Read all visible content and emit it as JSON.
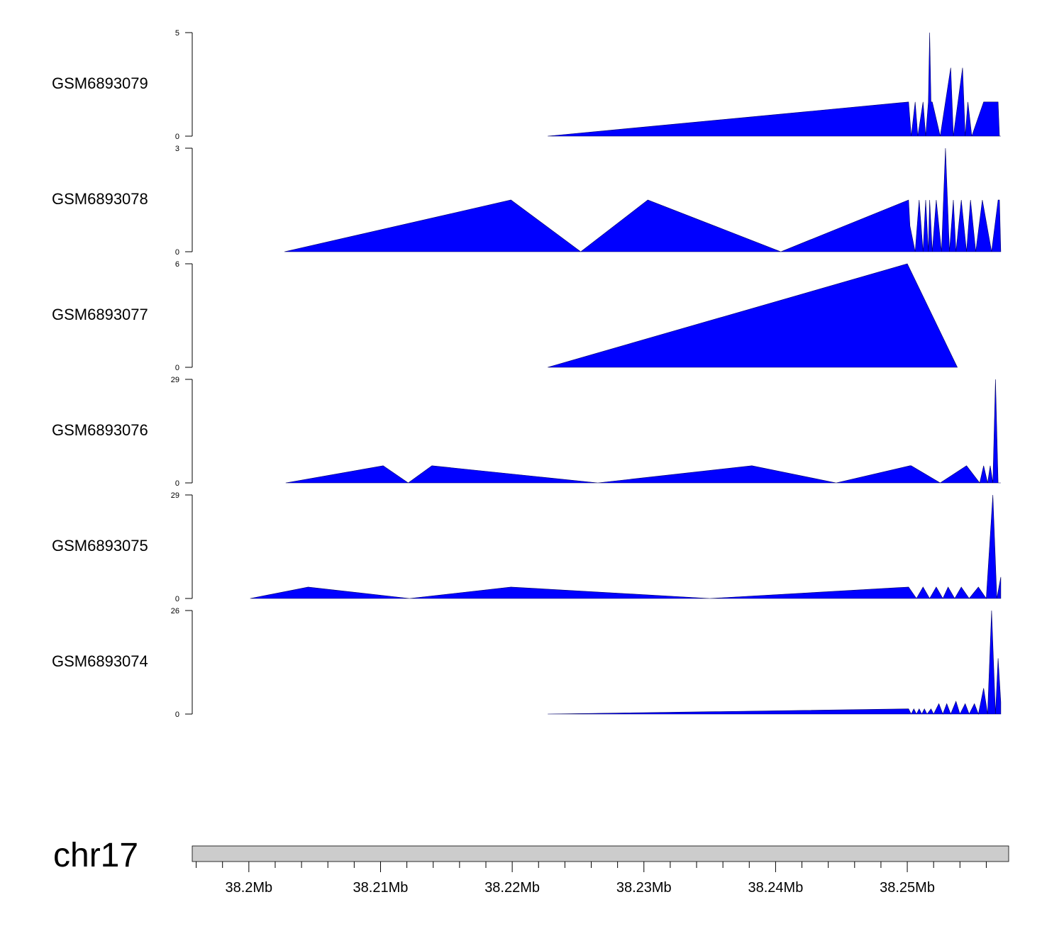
{
  "chart_data": {
    "type": "area",
    "title": "",
    "chromosome": "chr17",
    "xlim_mb": [
      38.1957,
      38.2577
    ],
    "x_ticks_major": [
      38.2,
      38.21,
      38.22,
      38.23,
      38.24,
      38.25
    ],
    "x_tick_labels": [
      "38.2Mb",
      "38.21Mb",
      "38.22Mb",
      "38.23Mb",
      "38.24Mb",
      "38.25Mb"
    ],
    "x_ticks_minor_step_mb": 0.002,
    "fill_color": "#0000ff",
    "axis_color": "#000000",
    "ideogram_color": "#cccccc",
    "tracks": [
      {
        "name": "GSM6893079",
        "ylim": [
          0,
          5
        ],
        "y_tick_labels": [
          "0",
          "5"
        ],
        "x": [
          38.2227,
          38.2501,
          38.2503,
          38.2506,
          38.2508,
          38.2512,
          38.2514,
          38.2516,
          38.2517,
          38.2518,
          38.2519,
          38.2525,
          38.2533,
          38.2534,
          38.2535,
          38.2542,
          38.2543,
          38.2544,
          38.2546,
          38.2549,
          38.2558,
          38.2569,
          38.257,
          38.2571
        ],
        "y": [
          0,
          1.65,
          0,
          1.65,
          0,
          1.65,
          0,
          1.65,
          5.0,
          1.65,
          1.65,
          0,
          3.3,
          1.65,
          0,
          3.3,
          1.65,
          0,
          1.65,
          0,
          1.65,
          1.65,
          0,
          0
        ]
      },
      {
        "name": "GSM6893078",
        "ylim": [
          0,
          3
        ],
        "y_tick_labels": [
          "0",
          "3"
        ],
        "x": [
          38.2027,
          38.2199,
          38.2252,
          38.2303,
          38.2404,
          38.2501,
          38.2502,
          38.2506,
          38.2509,
          38.2512,
          38.2514,
          38.2516,
          38.2517,
          38.2519,
          38.2522,
          38.2526,
          38.2529,
          38.2532,
          38.2535,
          38.2537,
          38.2541,
          38.2545,
          38.2548,
          38.2552,
          38.2557,
          38.2564,
          38.2569,
          38.257,
          38.2571
        ],
        "y": [
          0,
          1.5,
          0,
          1.5,
          0,
          1.5,
          0.75,
          0,
          1.5,
          0,
          1.5,
          0,
          1.5,
          0,
          1.5,
          0,
          3.0,
          0,
          1.5,
          0,
          1.5,
          0,
          1.5,
          0,
          1.5,
          0,
          1.5,
          1.5,
          0
        ]
      },
      {
        "name": "GSM6893077",
        "ylim": [
          0,
          6
        ],
        "y_tick_labels": [
          "0",
          "6"
        ],
        "x": [
          38.2227,
          38.25,
          38.2538
        ],
        "y": [
          0,
          6.0,
          0
        ]
      },
      {
        "name": "GSM6893076",
        "ylim": [
          0,
          29
        ],
        "y_tick_labels": [
          "0",
          "29"
        ],
        "x": [
          38.2028,
          38.2102,
          38.2121,
          38.2139,
          38.2265,
          38.2382,
          38.2446,
          38.2502,
          38.2503,
          38.2525,
          38.2545,
          38.2555,
          38.2558,
          38.2561,
          38.2563,
          38.2565,
          38.2567,
          38.2569,
          38.2571
        ],
        "y": [
          0,
          4.8,
          0,
          4.8,
          0,
          4.8,
          0,
          4.8,
          4.8,
          0,
          4.8,
          0,
          4.8,
          0,
          4.8,
          0,
          29,
          0,
          0
        ]
      },
      {
        "name": "GSM6893075",
        "ylim": [
          0,
          29
        ],
        "y_tick_labels": [
          "0",
          "29"
        ],
        "x": [
          38.2001,
          38.2045,
          38.2122,
          38.2199,
          38.235,
          38.2501,
          38.2507,
          38.2512,
          38.2517,
          38.2522,
          38.2527,
          38.2531,
          38.2536,
          38.2541,
          38.2547,
          38.2554,
          38.256,
          38.2565,
          38.2568,
          38.2571
        ],
        "y": [
          0,
          3.2,
          0,
          3.2,
          0,
          3.2,
          0,
          3.2,
          0,
          3.2,
          0,
          3.2,
          0,
          3.2,
          0,
          3.2,
          0,
          29,
          0,
          6
        ]
      },
      {
        "name": "GSM6893074",
        "ylim": [
          0,
          26
        ],
        "y_tick_labels": [
          "0",
          "26"
        ],
        "x": [
          38.2227,
          38.2501,
          38.2503,
          38.2505,
          38.2507,
          38.2509,
          38.2511,
          38.2513,
          38.2515,
          38.2518,
          38.252,
          38.2524,
          38.2527,
          38.253,
          38.2533,
          38.2537,
          38.254,
          38.2544,
          38.2547,
          38.2551,
          38.2554,
          38.2558,
          38.2561,
          38.2564,
          38.2567,
          38.2569,
          38.2571
        ],
        "y": [
          0,
          1.3,
          0,
          1.3,
          0,
          1.3,
          0,
          1.3,
          0,
          1.3,
          0,
          2.6,
          0,
          2.6,
          0,
          3.2,
          0,
          2.6,
          0,
          2.6,
          0,
          6.5,
          0,
          26,
          0,
          14,
          3
        ]
      }
    ]
  }
}
